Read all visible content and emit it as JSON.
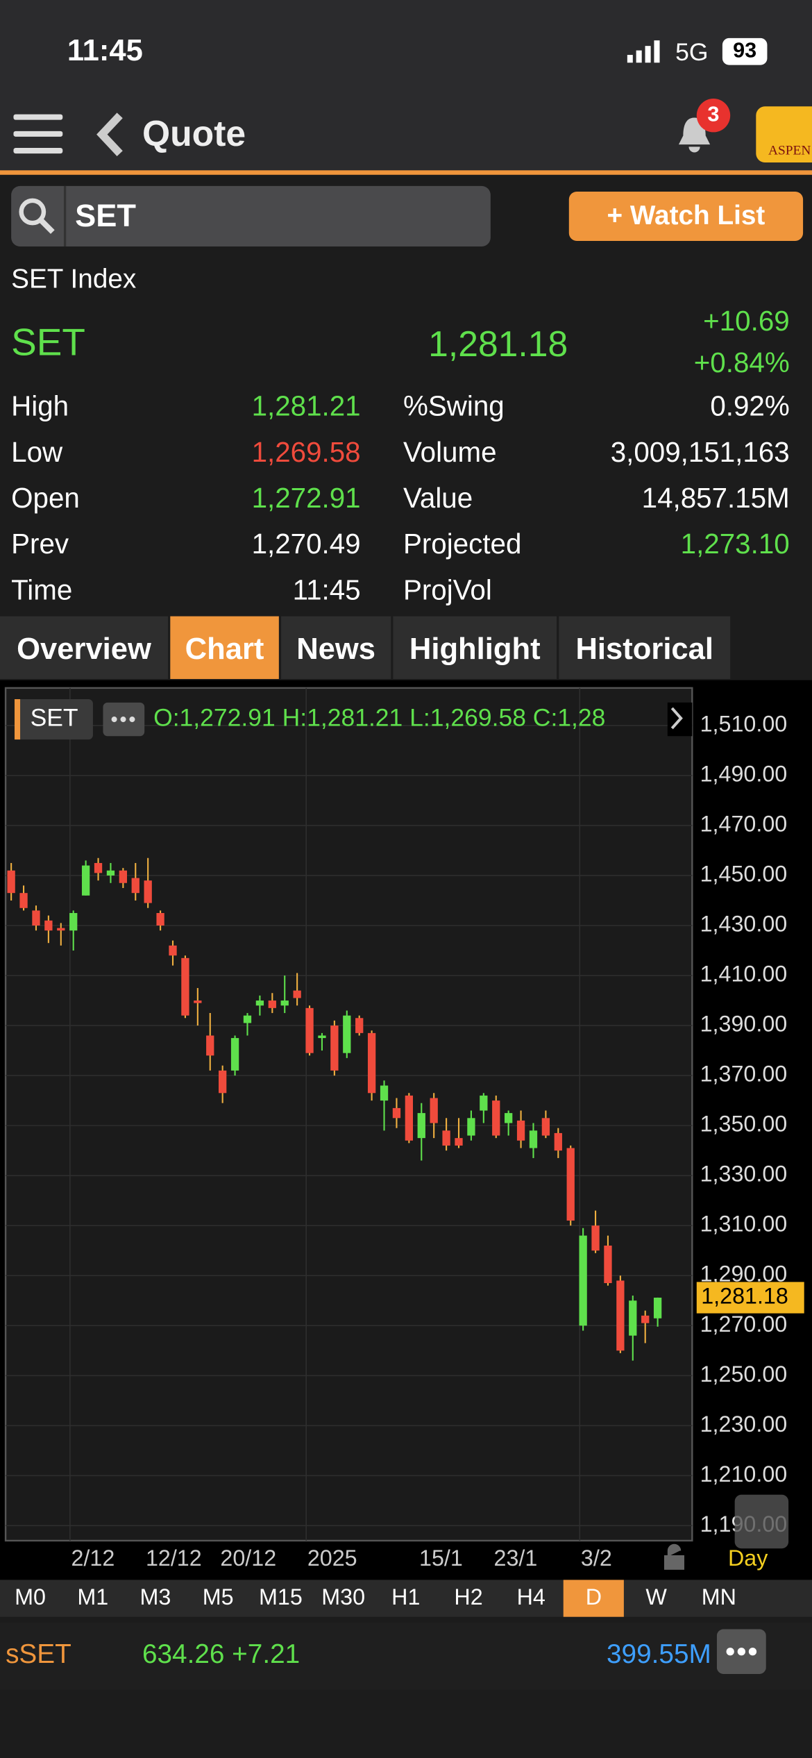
{
  "status_bar": {
    "time": "11:45",
    "network": "5G",
    "battery": "93"
  },
  "nav": {
    "title": "Quote",
    "notification_count": "3",
    "logo": "ASPEN"
  },
  "search": {
    "query": "SET",
    "watch_list_button": "+ Watch List"
  },
  "quote": {
    "name": "SET Index",
    "symbol": "SET",
    "last": "1,281.18",
    "change": "+10.69",
    "change_pct": "+0.84%",
    "left_stats": [
      {
        "label": "High",
        "value": "1,281.21",
        "color": "#5fe04c"
      },
      {
        "label": "Low",
        "value": "1,269.58",
        "color": "#f04b3c"
      },
      {
        "label": "Open",
        "value": "1,272.91",
        "color": "#5fe04c"
      },
      {
        "label": "Prev",
        "value": "1,270.49",
        "color": "#ffffff"
      },
      {
        "label": "Time",
        "value": "11:45",
        "color": "#ffffff"
      }
    ],
    "right_stats": [
      {
        "label": "%Swing",
        "value": "0.92%",
        "color": "#ffffff"
      },
      {
        "label": "Volume",
        "value": "3,009,151,163",
        "color": "#ffffff"
      },
      {
        "label": "Value",
        "value": "14,857.15M",
        "color": "#ffffff"
      },
      {
        "label": "Projected",
        "value": "1,273.10",
        "color": "#5fe04c"
      },
      {
        "label": "ProjVol"
      }
    ]
  },
  "tabs": [
    "Overview",
    "Chart",
    "News",
    "Highlight",
    "Historical"
  ],
  "active_tab": 1,
  "chart_data": {
    "type": "candlestick",
    "symbol_label": "SET",
    "ohlc_text": "O:1,272.91  H:1,281.21  L:1,269.58  C:1,28",
    "categories": [
      null,
      null,
      null,
      null,
      null,
      "2/12",
      null,
      null,
      null,
      null,
      null,
      "12/12",
      null,
      null,
      null,
      null,
      null,
      "20/12",
      null,
      null,
      null,
      null,
      null,
      null,
      "2025",
      null,
      null,
      null,
      null,
      null,
      null,
      null,
      null,
      "15/1",
      null,
      null,
      null,
      null,
      null,
      "23/1",
      null,
      null,
      null,
      null,
      null,
      null,
      "3/2",
      null,
      null,
      null,
      null,
      null,
      null
    ],
    "open": [
      1452,
      1443,
      1436,
      1432,
      1429,
      1428,
      1442,
      1455,
      1450,
      1452,
      1449,
      1448,
      1435,
      1422,
      1417,
      1400,
      1386,
      1372,
      1372,
      1391,
      1398,
      1400,
      1398,
      1404,
      1397,
      1385,
      1390,
      1379,
      1393,
      1387,
      1360,
      1357,
      1362,
      1345,
      1361,
      1348,
      1345,
      1346,
      1356,
      1360,
      1351,
      1352,
      1341,
      1353,
      1347,
      1341,
      1270,
      1310,
      1302,
      1288,
      1266,
      1274,
      1272.91
    ],
    "high": [
      1455,
      1446,
      1438,
      1434,
      1431,
      1436,
      1456,
      1457,
      1455,
      1453,
      1455,
      1457,
      1436,
      1424,
      1418,
      1405,
      1395,
      1374,
      1386,
      1395,
      1402,
      1403,
      1410,
      1411,
      1398,
      1387,
      1392,
      1396,
      1394,
      1388,
      1368,
      1361,
      1363,
      1359,
      1363,
      1353,
      1353,
      1356,
      1363,
      1362,
      1356,
      1356,
      1351,
      1356,
      1349,
      1342,
      1309,
      1316,
      1306,
      1290,
      1282,
      1276,
      1281.21
    ],
    "low": [
      1440,
      1436,
      1428,
      1423,
      1422,
      1420,
      1442,
      1448,
      1447,
      1445,
      1440,
      1437,
      1428,
      1414,
      1393,
      1390,
      1372,
      1359,
      1370,
      1386,
      1394,
      1395,
      1395,
      1398,
      1378,
      1380,
      1370,
      1377,
      1386,
      1360,
      1348,
      1349,
      1343,
      1336,
      1345,
      1340,
      1341,
      1344,
      1351,
      1345,
      1346,
      1341,
      1337,
      1345,
      1337,
      1310,
      1268,
      1299,
      1286,
      1259,
      1256,
      1263,
      1269.58
    ],
    "close": [
      1443,
      1437,
      1430,
      1428,
      1428,
      1435,
      1454,
      1451,
      1452,
      1447,
      1443,
      1439,
      1430,
      1418,
      1394,
      1399,
      1378,
      1363,
      1385,
      1394,
      1400,
      1397,
      1400,
      1401,
      1379,
      1386,
      1372,
      1394,
      1387,
      1363,
      1366,
      1353,
      1344,
      1355,
      1351,
      1342,
      1342,
      1353,
      1362,
      1346,
      1355,
      1344,
      1348,
      1346,
      1340,
      1312,
      1306,
      1300,
      1287,
      1260,
      1280,
      1271,
      1281.18
    ],
    "up_color": "#5fe04c",
    "down_color": "#f04b3c",
    "ylim": [
      1184,
      1525
    ],
    "yticks": [
      {
        "value": 1510,
        "label": "1,510.00"
      },
      {
        "value": 1490,
        "label": "1,490.00"
      },
      {
        "value": 1470,
        "label": "1,470.00"
      },
      {
        "value": 1450,
        "label": "1,450.00"
      },
      {
        "value": 1430,
        "label": "1,430.00"
      },
      {
        "value": 1410,
        "label": "1,410.00"
      },
      {
        "value": 1390,
        "label": "1,390.00"
      },
      {
        "value": 1370,
        "label": "1,370.00"
      },
      {
        "value": 1350,
        "label": "1,350.00"
      },
      {
        "value": 1330,
        "label": "1,330.00"
      },
      {
        "value": 1310,
        "label": "1,310.00"
      },
      {
        "value": 1290,
        "label": "1,290.00"
      },
      {
        "value": 1270,
        "label": "1,270.00"
      },
      {
        "value": 1250,
        "label": "1,250.00"
      },
      {
        "value": 1230,
        "label": "1,230.00"
      },
      {
        "value": 1210,
        "label": "1,210.00"
      },
      {
        "value": 1190,
        "label": "1,190.00"
      }
    ],
    "grid": true,
    "last_price": {
      "value": 1281.18,
      "label": "1,281.18"
    },
    "period_label": "Day"
  },
  "timeframes": [
    "M0",
    "M1",
    "M3",
    "M5",
    "M15",
    "M30",
    "H1",
    "H2",
    "H4",
    "D",
    "W",
    "MN"
  ],
  "active_timeframe": 9,
  "footer": {
    "symbol": "sSET",
    "value": "634.26 +7.21",
    "volume": "399.55M"
  }
}
